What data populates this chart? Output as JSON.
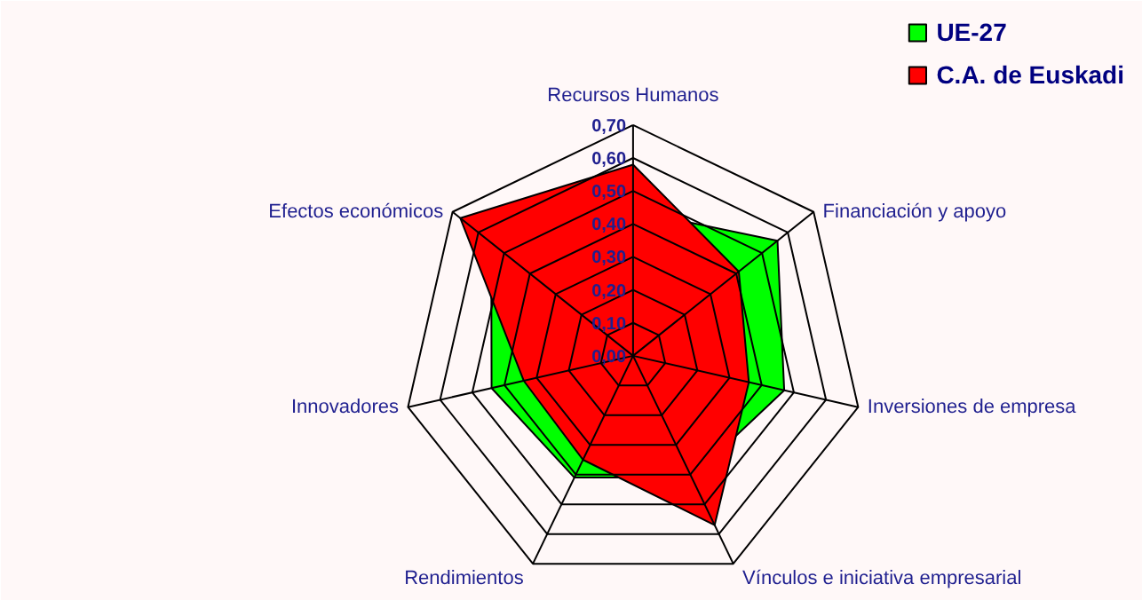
{
  "chart_data": {
    "type": "radar",
    "categories": [
      "Recursos Humanos",
      "Financiación y apoyo",
      "Inversiones de empresa",
      "Vínculos e iniciativa empresarial",
      "Rendimientos",
      "Innovadores",
      "Efectos económicos"
    ],
    "series": [
      {
        "name": "UE-27",
        "color": "#00ff00",
        "values": [
          0.44,
          0.56,
          0.47,
          0.41,
          0.41,
          0.44,
          0.55
        ]
      },
      {
        "name": "C.A. de Euskadi",
        "color": "#ff0000",
        "values": [
          0.58,
          0.41,
          0.36,
          0.57,
          0.35,
          0.34,
          0.67
        ]
      }
    ],
    "ylim": [
      0,
      0.7
    ],
    "yticks": [
      {
        "value": 0,
        "label": "0,00"
      },
      {
        "value": 0.1,
        "label": "0,10"
      },
      {
        "value": 0.2,
        "label": "0,20"
      },
      {
        "value": 0.3,
        "label": "0,30"
      },
      {
        "value": 0.4,
        "label": "0,40"
      },
      {
        "value": 0.5,
        "label": "0,50"
      },
      {
        "value": 0.6,
        "label": "0,60"
      },
      {
        "value": 0.7,
        "label": "0,70"
      }
    ],
    "grid": true,
    "legend": "top right"
  }
}
